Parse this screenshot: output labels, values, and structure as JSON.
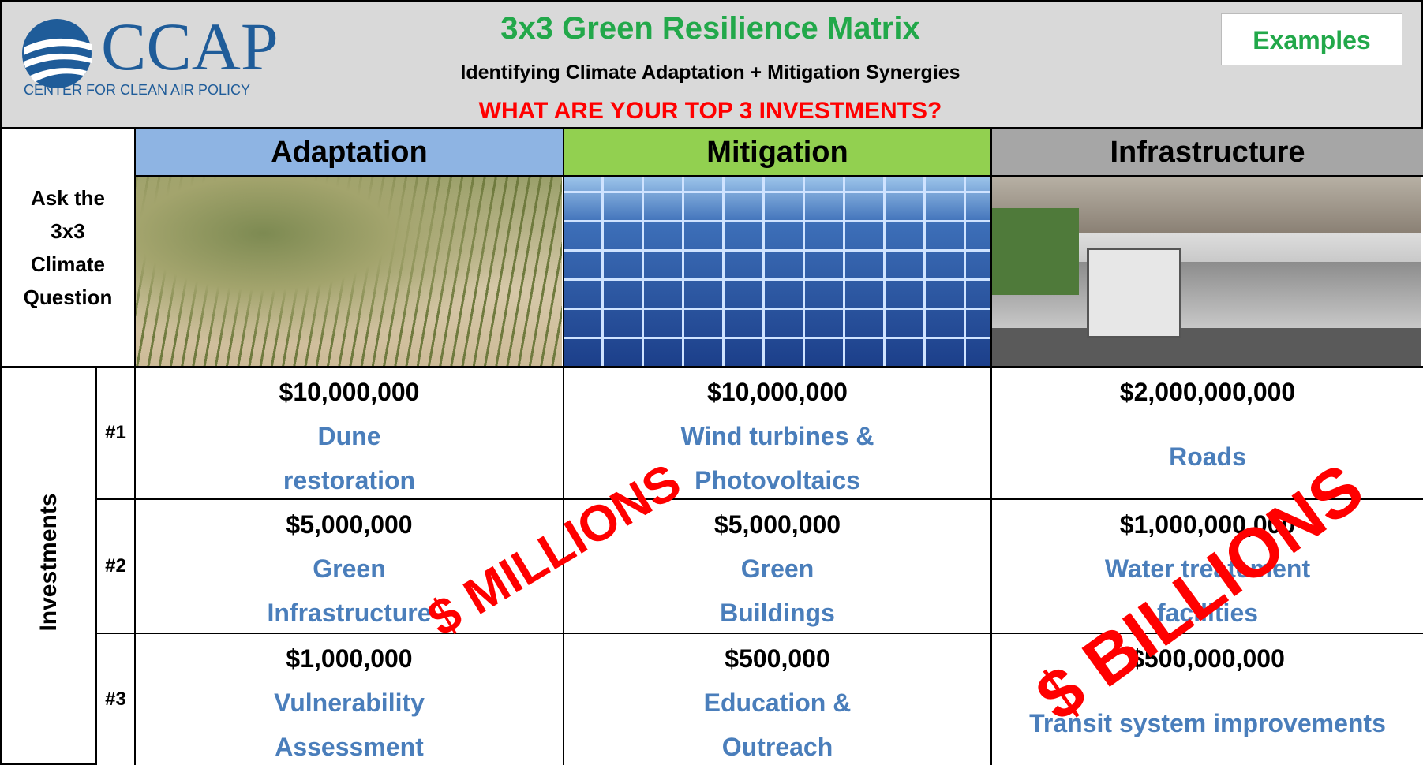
{
  "header": {
    "logo_text": "CCAP",
    "logo_subtitle": "CENTER FOR CLEAN AIR POLICY",
    "title": "3x3 Green Resilience Matrix",
    "subtitle": "Identifying Climate Adaptation + Mitigation Synergies",
    "question": "WHAT ARE YOUR TOP 3 INVESTMENTS?",
    "button": "Examples"
  },
  "matrix": {
    "prompt": [
      "Ask the",
      "3x3",
      "Climate",
      "Question"
    ],
    "row_group": "Investments",
    "columns": [
      "Adaptation",
      "Mitigation",
      "Infrastructure"
    ],
    "rows": [
      {
        "rank": "#1",
        "cells": [
          {
            "amount": "$10,000,000",
            "label": [
              "Dune",
              "restoration"
            ]
          },
          {
            "amount": "$10,000,000",
            "label": [
              "Wind turbines &",
              "Photovoltaics"
            ]
          },
          {
            "amount": "$2,000,000,000",
            "label": [
              "Roads"
            ]
          }
        ]
      },
      {
        "rank": "#2",
        "cells": [
          {
            "amount": "$5,000,000",
            "label": [
              "Green",
              "Infrastructure"
            ]
          },
          {
            "amount": "$5,000,000",
            "label": [
              "Green",
              "Buildings"
            ]
          },
          {
            "amount": "$1,000,000,000",
            "label": [
              "Water treatement",
              "facilities"
            ]
          }
        ]
      },
      {
        "rank": "#3",
        "cells": [
          {
            "amount": "$1,000,000",
            "label": [
              "Vulnerability",
              "Assessment"
            ]
          },
          {
            "amount": "$500,000",
            "label": [
              "Education &",
              "Outreach"
            ]
          },
          {
            "amount": "$500,000,000",
            "label": [
              "Transit system improvements"
            ]
          }
        ]
      }
    ]
  },
  "overlays": [
    "$ MILLIONS",
    "$ BILLIONS"
  ]
}
